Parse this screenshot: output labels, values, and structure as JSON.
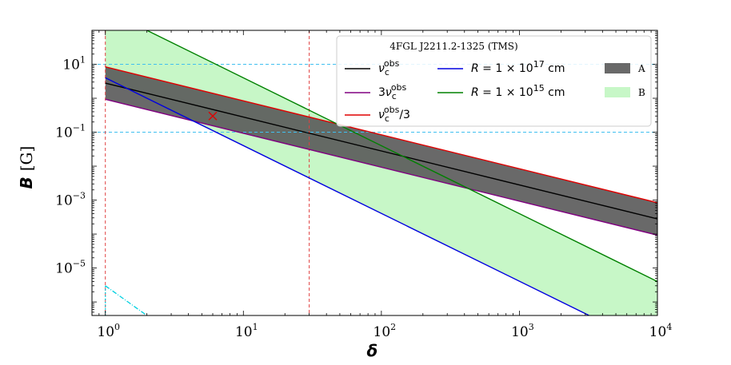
{
  "chart_data": {
    "type": "line",
    "title": "",
    "xlabel": "δ",
    "ylabel_var": "B",
    "ylabel_unit": "[G]",
    "xscale": "log",
    "yscale": "log",
    "xlim": [
      0.8,
      10000
    ],
    "ylim": [
      4e-07,
      100
    ],
    "x_ticks": [
      {
        "value": 1,
        "base": "10",
        "exp": "0"
      },
      {
        "value": 10,
        "base": "10",
        "exp": "1"
      },
      {
        "value": 100,
        "base": "10",
        "exp": "2"
      },
      {
        "value": 1000,
        "base": "10",
        "exp": "3"
      },
      {
        "value": 10000,
        "base": "10",
        "exp": "4"
      }
    ],
    "y_ticks": [
      {
        "value": 10,
        "base": "10",
        "exp": "1"
      },
      {
        "value": 0.1,
        "base": "10",
        "exp": "−1"
      },
      {
        "value": 0.001,
        "base": "10",
        "exp": "−3"
      },
      {
        "value": 1e-05,
        "base": "10",
        "exp": "−5"
      }
    ],
    "legend": {
      "title": "4FGL J2211.2-1325 (TMS)",
      "placement": "top-right"
    },
    "series": [
      {
        "name": "ν_c^obs",
        "label_main": "ν",
        "label_sub": "c",
        "label_sup": "obs",
        "label_suffix": "",
        "color": "#000000",
        "x": [
          1,
          10000
        ],
        "y": [
          2.8,
          0.00028
        ]
      },
      {
        "name": "3ν_c^obs",
        "label_prefix": "3",
        "label_main": "ν",
        "label_sub": "c",
        "label_sup": "obs",
        "label_suffix": "",
        "color": "#800080",
        "x": [
          1,
          10000
        ],
        "y": [
          0.93,
          9.3e-05
        ]
      },
      {
        "name": "ν_c^obs/3",
        "label_main": "ν",
        "label_sub": "c",
        "label_sup": "obs",
        "label_suffix": "/3",
        "color": "#e00000",
        "x": [
          1,
          10000
        ],
        "y": [
          8.4,
          0.00084
        ]
      },
      {
        "name": "R = 1 × 10^17 cm",
        "label_text": "R = 1 × 10",
        "label_sup": "17",
        "label_suffix": " cm",
        "color": "#0000e0",
        "x": [
          1,
          3200
        ],
        "y": [
          4,
          4e-07
        ]
      },
      {
        "name": "R = 1 × 10^15 cm",
        "label_text": "R = 1 × 10",
        "label_sup": "15",
        "label_suffix": " cm",
        "color": "#008000",
        "x": [
          1,
          10000
        ],
        "y": [
          400,
          4e-06
        ]
      }
    ],
    "bands": [
      {
        "name": "A",
        "color": "#595959",
        "opacity": 0.9,
        "x": [
          1,
          10000
        ],
        "y_low": [
          0.93,
          9.3e-05
        ],
        "y_high": [
          8.4,
          0.00084
        ]
      },
      {
        "name": "B",
        "color": "#90f090",
        "opacity": 0.5
      }
    ],
    "vlines": [
      {
        "x": 1,
        "color": "#e04040"
      },
      {
        "x": 30,
        "color": "#e04040"
      }
    ],
    "hlines": [
      {
        "y": 10,
        "color": "#40c0f0"
      },
      {
        "y": 0.1,
        "color": "#40c0f0"
      }
    ],
    "marker": {
      "x": 6,
      "y": 0.3,
      "symbol": "x",
      "color": "#e00000"
    },
    "cyan_line": {
      "color": "#00d0e0",
      "x": [
        1,
        2
      ],
      "y": [
        3e-06,
        4e-07
      ]
    }
  }
}
